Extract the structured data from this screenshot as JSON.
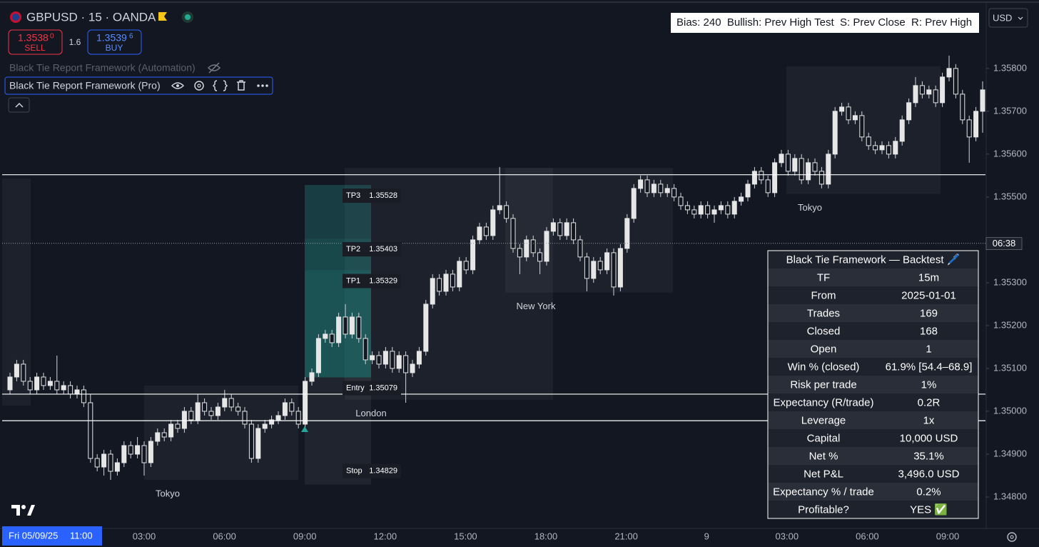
{
  "header": {
    "symbol": "GBPUSD · 15 · OANDA",
    "sell_price": "1.3538",
    "sell_pip": "0",
    "sell": "SELL",
    "spread": "1.6",
    "buy_price": "1.3539",
    "buy_pip": "6",
    "buy": "BUY",
    "indicator_1": "Black Tie Report Framework (Automation)",
    "indicator_2": "Black Tie Report Framework (Pro)",
    "bias": "Bias: 240  Bullish: Prev High Test  S: Prev Close  R: Prev High",
    "currency": "USD"
  },
  "chart_data": {
    "type": "candlestick",
    "ylim": [
      1.34735,
      1.35953
    ],
    "yticks": [
      {
        "value": 1.358,
        "label": "1.35800"
      },
      {
        "value": 1.357,
        "label": "1.35700"
      },
      {
        "value": 1.356,
        "label": "1.35600"
      },
      {
        "value": 1.355,
        "label": "1.35500"
      },
      {
        "value": 1.353,
        "label": "1.35300"
      },
      {
        "value": 1.352,
        "label": "1.35200"
      },
      {
        "value": 1.351,
        "label": "1.35100"
      },
      {
        "value": 1.35,
        "label": "1.35000"
      },
      {
        "value": 1.349,
        "label": "1.34900"
      },
      {
        "value": 1.348,
        "label": "1.34800"
      }
    ],
    "x_labels": [
      "03:00",
      "06:00",
      "09:00",
      "12:00",
      "15:00",
      "18:00",
      "21:00",
      "9",
      "03:00",
      "06:00",
      "09:00"
    ],
    "crosshair_date": "Fri 05/09/25",
    "crosshair_time": "11:00",
    "countdown": "06:38",
    "current_price": 1.35392,
    "levels": [
      1.35552,
      1.3504,
      1.34978
    ],
    "sessions": [
      {
        "high": 1.35543,
        "low": 1.35013
      },
      {
        "name": "Tokyo",
        "high": 1.3506,
        "low": 1.3484
      },
      {
        "name": "London",
        "high": 1.35568,
        "low": 1.35027
      },
      {
        "name": "New York",
        "high": 1.35568,
        "low": 1.35277
      },
      {
        "name": "Tokyo",
        "high": 1.35805,
        "low": 1.35507
      }
    ],
    "trade": [
      {
        "name": "TP3",
        "price": 1.35528
      },
      {
        "name": "TP2",
        "price": 1.35403
      },
      {
        "name": "TP1",
        "price": 1.35329
      },
      {
        "name": "Entry",
        "price": 1.35079
      },
      {
        "name": "Stop",
        "price": 1.34829
      }
    ],
    "candles": [
      [
        1.3505,
        1.3509,
        1.3504,
        1.3508
      ],
      [
        1.3508,
        1.3512,
        1.3507,
        1.3511
      ],
      [
        1.3511,
        1.3512,
        1.3506,
        1.3507
      ],
      [
        1.3507,
        1.3508,
        1.3504,
        1.3505
      ],
      [
        1.3505,
        1.3509,
        1.3504,
        1.3508
      ],
      [
        1.3508,
        1.3509,
        1.3505,
        1.3506
      ],
      [
        1.3506,
        1.3508,
        1.3505,
        1.3507
      ],
      [
        1.3507,
        1.3513,
        1.3504,
        1.3505
      ],
      [
        1.3505,
        1.3507,
        1.3504,
        1.3506
      ],
      [
        1.3506,
        1.3507,
        1.3503,
        1.3504
      ],
      [
        1.3504,
        1.3506,
        1.3503,
        1.3505
      ],
      [
        1.3505,
        1.3506,
        1.3501,
        1.3502
      ],
      [
        1.3502,
        1.3504,
        1.3488,
        1.3489
      ],
      [
        1.3489,
        1.349,
        1.3486,
        1.3487
      ],
      [
        1.3487,
        1.3491,
        1.3485,
        1.349
      ],
      [
        1.349,
        1.3491,
        1.3484,
        1.3486
      ],
      [
        1.3486,
        1.3489,
        1.3485,
        1.3488
      ],
      [
        1.3488,
        1.3493,
        1.3487,
        1.3492
      ],
      [
        1.3492,
        1.3493,
        1.3489,
        1.349
      ],
      [
        1.349,
        1.3494,
        1.3489,
        1.3492
      ],
      [
        1.3492,
        1.3493,
        1.3485,
        1.3488
      ],
      [
        1.3488,
        1.3494,
        1.3487,
        1.3493
      ],
      [
        1.3493,
        1.3496,
        1.3492,
        1.3495
      ],
      [
        1.3495,
        1.3496,
        1.3493,
        1.3494
      ],
      [
        1.3494,
        1.3498,
        1.3493,
        1.3497
      ],
      [
        1.3497,
        1.3498,
        1.3495,
        1.3496
      ],
      [
        1.3496,
        1.3501,
        1.3495,
        1.35
      ],
      [
        1.35,
        1.3501,
        1.3497,
        1.3498
      ],
      [
        1.3498,
        1.3504,
        1.3497,
        1.3502
      ],
      [
        1.3502,
        1.3503,
        1.3499,
        1.35
      ],
      [
        1.35,
        1.3501,
        1.3498,
        1.3499
      ],
      [
        1.3499,
        1.3502,
        1.3498,
        1.3501
      ],
      [
        1.3501,
        1.3505,
        1.35,
        1.3503
      ],
      [
        1.3503,
        1.3504,
        1.35,
        1.3501
      ],
      [
        1.3501,
        1.3502,
        1.3499,
        1.35
      ],
      [
        1.35,
        1.3501,
        1.3496,
        1.3497
      ],
      [
        1.3497,
        1.3498,
        1.3488,
        1.3489
      ],
      [
        1.3489,
        1.3497,
        1.3488,
        1.3496
      ],
      [
        1.3496,
        1.3498,
        1.3495,
        1.3497
      ],
      [
        1.3497,
        1.3499,
        1.3496,
        1.3498
      ],
      [
        1.3498,
        1.35,
        1.3497,
        1.3499
      ],
      [
        1.3499,
        1.3503,
        1.3498,
        1.3502
      ],
      [
        1.3502,
        1.3503,
        1.3499,
        1.35
      ],
      [
        1.35,
        1.3501,
        1.3496,
        1.3497
      ],
      [
        1.3497,
        1.3508,
        1.3496,
        1.3507
      ],
      [
        1.3507,
        1.351,
        1.3506,
        1.3509
      ],
      [
        1.3509,
        1.3518,
        1.3508,
        1.3517
      ],
      [
        1.3517,
        1.3519,
        1.3516,
        1.3518
      ],
      [
        1.3518,
        1.3519,
        1.3515,
        1.3516
      ],
      [
        1.3516,
        1.3523,
        1.3515,
        1.3522
      ],
      [
        1.3522,
        1.3525,
        1.3517,
        1.3518
      ],
      [
        1.3518,
        1.3523,
        1.3517,
        1.3522
      ],
      [
        1.3522,
        1.3523,
        1.3516,
        1.3517
      ],
      [
        1.3517,
        1.3518,
        1.3511,
        1.3512
      ],
      [
        1.3512,
        1.3514,
        1.3511,
        1.3513
      ],
      [
        1.3513,
        1.3514,
        1.351,
        1.3511
      ],
      [
        1.3511,
        1.3515,
        1.351,
        1.3514
      ],
      [
        1.3514,
        1.3515,
        1.3509,
        1.351
      ],
      [
        1.351,
        1.3514,
        1.3509,
        1.3513
      ],
      [
        1.3513,
        1.3514,
        1.3502,
        1.3509
      ],
      [
        1.3509,
        1.3512,
        1.3508,
        1.3511
      ],
      [
        1.3511,
        1.3515,
        1.351,
        1.3514
      ],
      [
        1.3514,
        1.3526,
        1.3513,
        1.3525
      ],
      [
        1.3525,
        1.3532,
        1.3524,
        1.3531
      ],
      [
        1.3531,
        1.3532,
        1.3527,
        1.3528
      ],
      [
        1.3528,
        1.3533,
        1.3527,
        1.3532
      ],
      [
        1.3532,
        1.3533,
        1.3528,
        1.3529
      ],
      [
        1.3529,
        1.3536,
        1.3528,
        1.3535
      ],
      [
        1.3535,
        1.3536,
        1.3532,
        1.3533
      ],
      [
        1.3533,
        1.3541,
        1.3532,
        1.354
      ],
      [
        1.354,
        1.3544,
        1.3539,
        1.3543
      ],
      [
        1.3543,
        1.3544,
        1.354,
        1.3541
      ],
      [
        1.3541,
        1.3548,
        1.354,
        1.3547
      ],
      [
        1.3547,
        1.3557,
        1.3546,
        1.3548
      ],
      [
        1.3548,
        1.3549,
        1.3544,
        1.3545
      ],
      [
        1.3545,
        1.3546,
        1.3537,
        1.3538
      ],
      [
        1.3538,
        1.3539,
        1.3532,
        1.3536
      ],
      [
        1.3536,
        1.3541,
        1.3535,
        1.354
      ],
      [
        1.354,
        1.3541,
        1.3536,
        1.3537
      ],
      [
        1.3537,
        1.3538,
        1.3532,
        1.3535
      ],
      [
        1.3535,
        1.3543,
        1.3534,
        1.3542
      ],
      [
        1.3542,
        1.3545,
        1.3541,
        1.3544
      ],
      [
        1.3544,
        1.3545,
        1.354,
        1.3541
      ],
      [
        1.3541,
        1.3545,
        1.354,
        1.3544
      ],
      [
        1.3544,
        1.3545,
        1.3539,
        1.354
      ],
      [
        1.354,
        1.3541,
        1.3535,
        1.3536
      ],
      [
        1.3536,
        1.3537,
        1.3528,
        1.3531
      ],
      [
        1.3531,
        1.3536,
        1.353,
        1.3535
      ],
      [
        1.3535,
        1.3536,
        1.3532,
        1.3533
      ],
      [
        1.3533,
        1.3538,
        1.3532,
        1.3537
      ],
      [
        1.3537,
        1.3538,
        1.3527,
        1.3529
      ],
      [
        1.3529,
        1.3539,
        1.3528,
        1.3538
      ],
      [
        1.3538,
        1.3546,
        1.3537,
        1.3545
      ],
      [
        1.3545,
        1.3553,
        1.3544,
        1.3552
      ],
      [
        1.3552,
        1.3555,
        1.3551,
        1.3554
      ],
      [
        1.3554,
        1.3555,
        1.355,
        1.3551
      ],
      [
        1.3551,
        1.3554,
        1.355,
        1.3553
      ],
      [
        1.3553,
        1.3554,
        1.355,
        1.3551
      ],
      [
        1.3551,
        1.3553,
        1.355,
        1.3552
      ],
      [
        1.3552,
        1.3553,
        1.3549,
        1.355
      ],
      [
        1.355,
        1.3551,
        1.3547,
        1.3548
      ],
      [
        1.3548,
        1.3549,
        1.3546,
        1.3547
      ],
      [
        1.3547,
        1.3548,
        1.3545,
        1.3546
      ],
      [
        1.3546,
        1.3549,
        1.3545,
        1.3548
      ],
      [
        1.3548,
        1.3549,
        1.3545,
        1.3546
      ],
      [
        1.3546,
        1.3548,
        1.3544,
        1.3547
      ],
      [
        1.3547,
        1.3549,
        1.3546,
        1.3548
      ],
      [
        1.3548,
        1.3549,
        1.3545,
        1.3546
      ],
      [
        1.3546,
        1.355,
        1.3545,
        1.3549
      ],
      [
        1.3549,
        1.3551,
        1.3548,
        1.355
      ],
      [
        1.355,
        1.3554,
        1.3549,
        1.3553
      ],
      [
        1.3553,
        1.3557,
        1.3552,
        1.3556
      ],
      [
        1.3556,
        1.3557,
        1.3553,
        1.3554
      ],
      [
        1.3554,
        1.3555,
        1.355,
        1.3551
      ],
      [
        1.3551,
        1.3559,
        1.355,
        1.3558
      ],
      [
        1.3558,
        1.3561,
        1.3557,
        1.356
      ],
      [
        1.356,
        1.3561,
        1.3555,
        1.3556
      ],
      [
        1.3556,
        1.356,
        1.3555,
        1.3559
      ],
      [
        1.3559,
        1.356,
        1.3553,
        1.3554
      ],
      [
        1.3554,
        1.3559,
        1.3553,
        1.3558
      ],
      [
        1.3558,
        1.3559,
        1.3555,
        1.3556
      ],
      [
        1.3556,
        1.3557,
        1.3552,
        1.3553
      ],
      [
        1.3553,
        1.3561,
        1.3552,
        1.356
      ],
      [
        1.356,
        1.3571,
        1.3559,
        1.357
      ],
      [
        1.357,
        1.3572,
        1.3569,
        1.3571
      ],
      [
        1.3571,
        1.3572,
        1.3567,
        1.3568
      ],
      [
        1.3568,
        1.357,
        1.3567,
        1.3569
      ],
      [
        1.3569,
        1.357,
        1.3563,
        1.3564
      ],
      [
        1.3564,
        1.3565,
        1.3561,
        1.3562
      ],
      [
        1.3562,
        1.3563,
        1.356,
        1.3561
      ],
      [
        1.3561,
        1.3563,
        1.356,
        1.3562
      ],
      [
        1.3562,
        1.3563,
        1.3559,
        1.356
      ],
      [
        1.356,
        1.3564,
        1.3559,
        1.3563
      ],
      [
        1.3563,
        1.3569,
        1.3562,
        1.3568
      ],
      [
        1.3568,
        1.3573,
        1.3567,
        1.3572
      ],
      [
        1.3572,
        1.3578,
        1.3571,
        1.3576
      ],
      [
        1.3576,
        1.3577,
        1.3573,
        1.3574
      ],
      [
        1.3574,
        1.3576,
        1.3573,
        1.3575
      ],
      [
        1.3575,
        1.3576,
        1.3571,
        1.3572
      ],
      [
        1.3572,
        1.3579,
        1.3571,
        1.3578
      ],
      [
        1.3578,
        1.3583,
        1.3577,
        1.358
      ],
      [
        1.358,
        1.3581,
        1.3573,
        1.3574
      ],
      [
        1.3574,
        1.3575,
        1.3567,
        1.3568
      ],
      [
        1.3568,
        1.3569,
        1.3558,
        1.3564
      ],
      [
        1.3564,
        1.3571,
        1.3563,
        1.357
      ],
      [
        1.357,
        1.3577,
        1.3565,
        1.3575
      ]
    ]
  },
  "backtest": {
    "title": "Black Tie Framework — Backtest 🖊️",
    "rows": [
      [
        "TF",
        "15m"
      ],
      [
        "From",
        "2025-01-01"
      ],
      [
        "Trades",
        "169"
      ],
      [
        "Closed",
        "168"
      ],
      [
        "Open",
        "1"
      ],
      [
        "Win % (closed)",
        "61.9% [54.4–68.9]"
      ],
      [
        "Risk per trade",
        "1%"
      ],
      [
        "Expectancy (R/trade)",
        "0.2R"
      ],
      [
        "Leverage",
        "1x"
      ],
      [
        "Capital",
        "10,000 USD"
      ],
      [
        "Net %",
        "35.1%"
      ],
      [
        "Net P&L",
        "3,496.0 USD"
      ],
      [
        "Expectancy % / trade",
        "0.2%"
      ],
      [
        "Profitable?",
        "YES ✅"
      ]
    ]
  }
}
